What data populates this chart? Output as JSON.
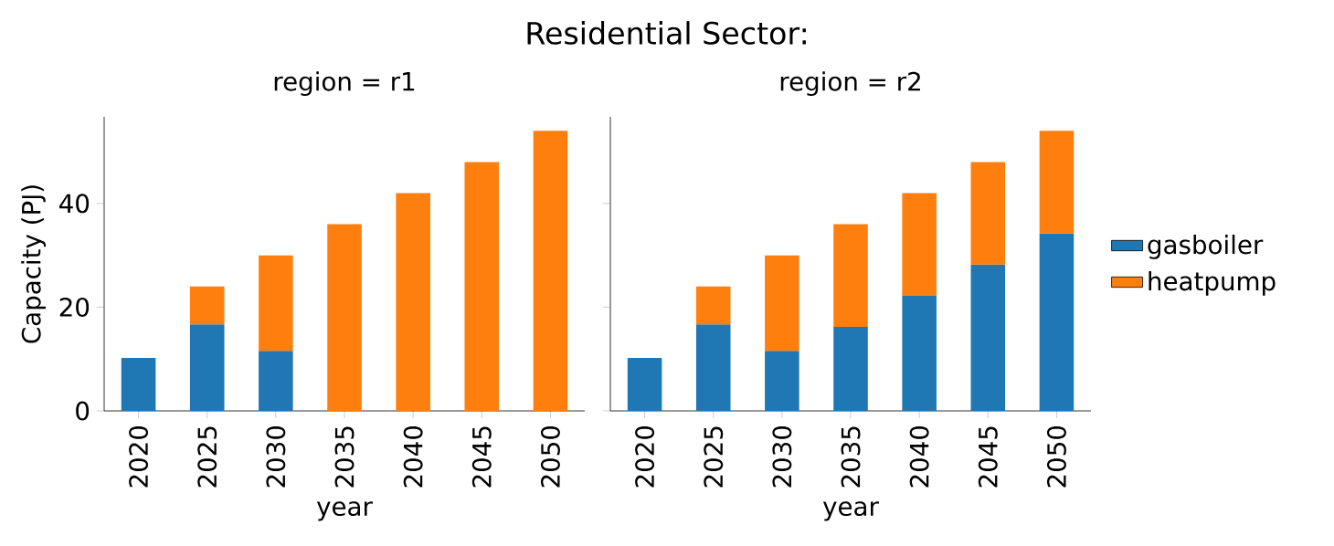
{
  "chart_data": [
    {
      "type": "bar",
      "title": "region = r1",
      "xlabel": "year",
      "ylabel": "Capacity (PJ)",
      "annotations": [
        "Residential Sector:"
      ],
      "categories": [
        "2020",
        "2025",
        "2030",
        "2035",
        "2040",
        "2045",
        "2050"
      ],
      "stacked": true,
      "series": [
        {
          "color": "#1f77b4",
          "values": [
            10.2,
            16.7,
            11.6,
            null,
            null,
            null,
            null
          ]
        },
        {
          "color": "#ff7f0e",
          "values": [
            null,
            7.3,
            18.4,
            36,
            42,
            48,
            54
          ]
        }
      ],
      "ylim": [
        0,
        56.7
      ],
      "yticks": [
        0,
        20,
        40
      ],
      "grid": false,
      "legend": false
    },
    {
      "type": "bar",
      "title": "region = r2",
      "xlabel": "year",
      "categories": [
        "2020",
        "2025",
        "2030",
        "2035",
        "2040",
        "2045",
        "2050"
      ],
      "stacked": true,
      "series": [
        {
          "name": "gasboiler",
          "color": "#1f77b4",
          "values": [
            10.2,
            16.7,
            11.6,
            16.2,
            22.2,
            28.2,
            34.2
          ]
        },
        {
          "name": "heatpump",
          "color": "#ff7f0e",
          "values": [
            null,
            7.3,
            18.4,
            19.8,
            19.8,
            19.8,
            19.8
          ]
        }
      ],
      "ylim": [
        0,
        56.7
      ],
      "yticks": [
        0,
        20,
        40
      ],
      "tick_labels": "x",
      "grid": false,
      "legend": "right"
    }
  ]
}
